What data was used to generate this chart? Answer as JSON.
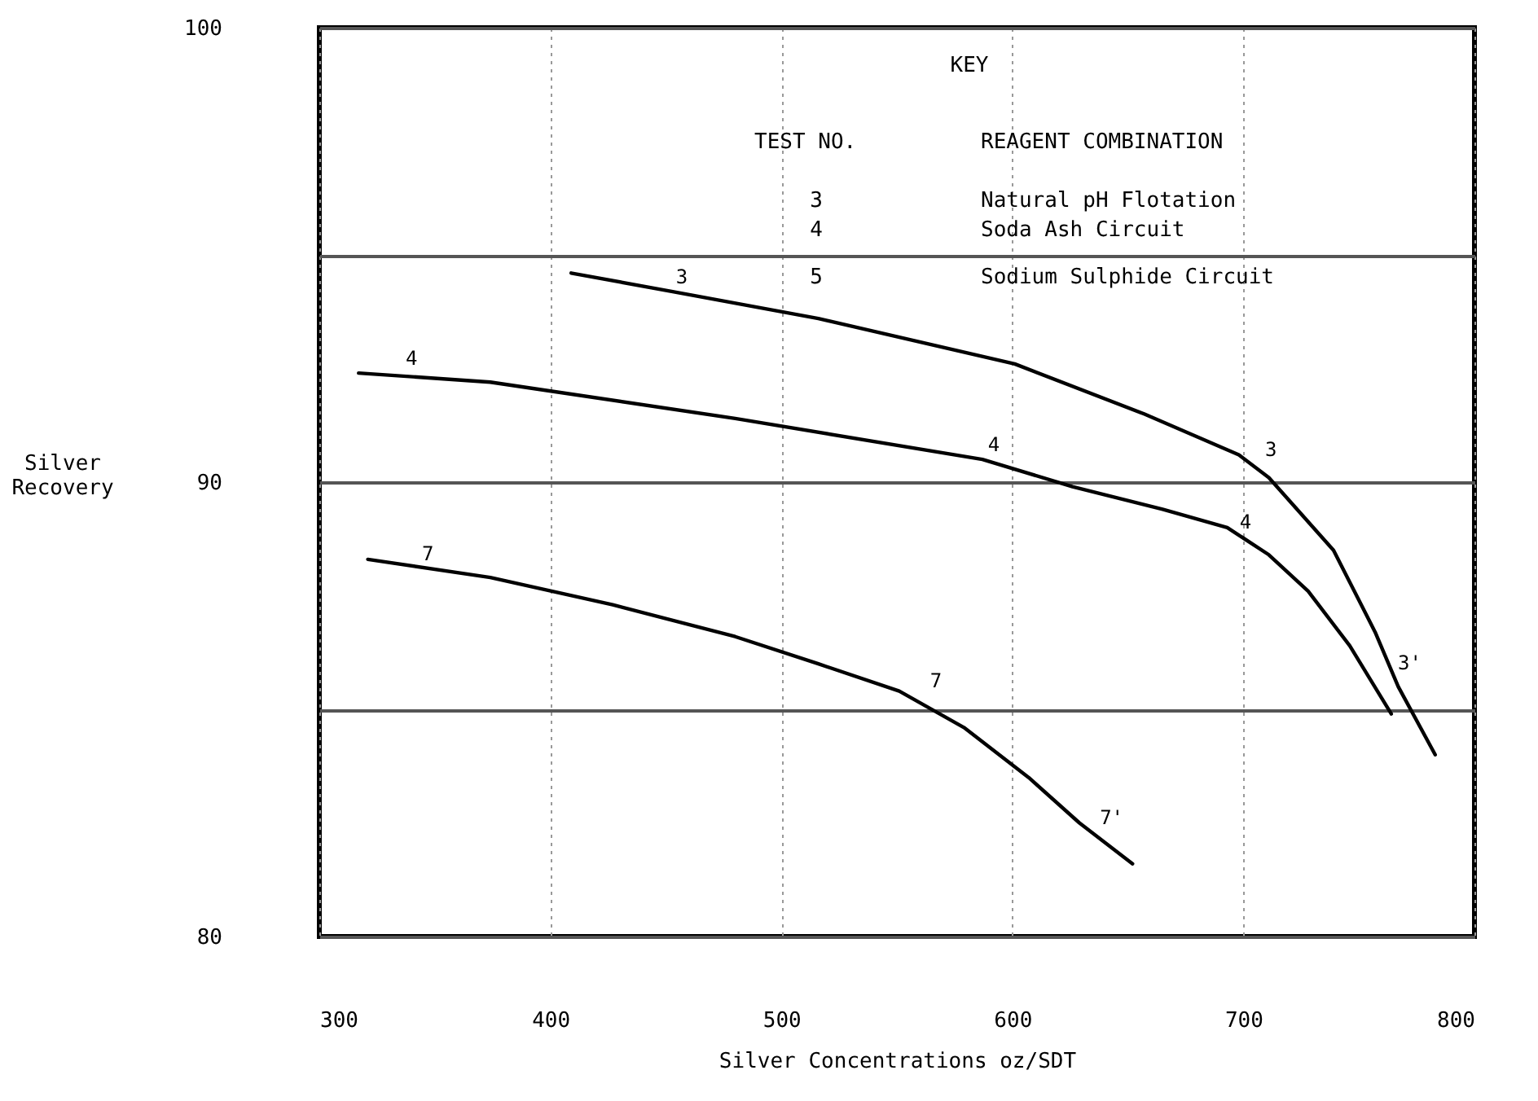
{
  "chart_data": {
    "type": "line",
    "xlabel": "Silver Concentrations oz/SDT",
    "ylabel": "Silver Recovery",
    "xlim": [
      300,
      800
    ],
    "ylim": [
      80,
      100
    ],
    "xticks": [
      300,
      400,
      500,
      600,
      700,
      800
    ],
    "yticks": [
      80,
      {
        "value": 85,
        "label": null
      },
      90,
      {
        "value": 95,
        "label": null
      },
      100
    ],
    "grid": true,
    "series": [
      {
        "color": "#000000",
        "x": [
          409,
          452,
          516,
          601,
          657,
          698,
          711,
          739,
          757,
          767,
          783
        ],
        "values": [
          94.6,
          94.2,
          93.6,
          92.6,
          91.5,
          90.6,
          90.1,
          88.5,
          86.7,
          85.5,
          84.0
        ]
      },
      {
        "color": "#000000",
        "x": [
          317,
          374,
          480,
          587,
          626,
          665,
          693,
          711,
          728,
          746,
          764
        ],
        "values": [
          92.4,
          92.2,
          91.4,
          90.5,
          89.9,
          89.4,
          89.0,
          88.4,
          87.6,
          86.4,
          84.9
        ]
      },
      {
        "color": "#000000",
        "x": [
          321,
          374,
          427,
          480,
          516,
          551,
          579,
          607,
          629,
          652
        ],
        "values": [
          88.3,
          87.9,
          87.3,
          86.6,
          86.0,
          85.4,
          84.6,
          83.5,
          82.5,
          81.6
        ]
      }
    ],
    "annotations": [
      "KEY",
      "TEST NO.",
      "REAGENT COMBINATION",
      "3",
      "Natural pH Flotation",
      "4",
      "Soda Ash Circuit",
      "5",
      "Sodium Sulphide Circuit",
      {
        "text": "3",
        "x": 452,
        "y": 94.2
      },
      {
        "text": "3",
        "x": 707,
        "y": 90.4
      },
      {
        "text": "3'",
        "x": 767,
        "y": 85.7
      },
      {
        "text": "4",
        "x": 335,
        "y": 92.4
      },
      {
        "text": "4",
        "x": 587,
        "y": 90.5
      },
      {
        "text": "4",
        "x": 696,
        "y": 88.8
      },
      {
        "text": "7",
        "x": 342,
        "y": 88.1
      },
      {
        "text": "7",
        "x": 562,
        "y": 85.3
      },
      {
        "text": "7'",
        "x": 638,
        "y": 82.3
      }
    ]
  }
}
